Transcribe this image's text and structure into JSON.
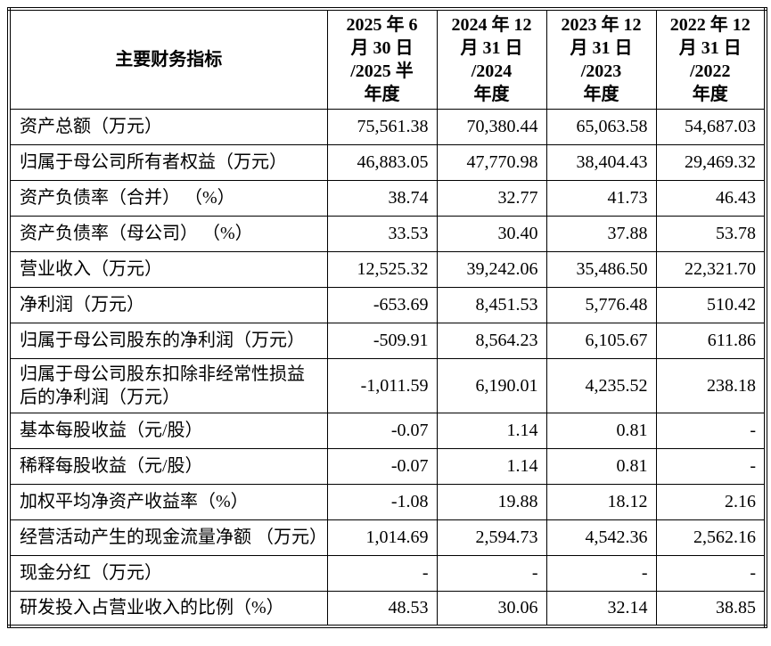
{
  "page": {
    "background_color": "#ffffff",
    "text_color": "#000000",
    "border_color": "#000000"
  },
  "table": {
    "header": {
      "label": "主要财务指标",
      "columns": [
        "2025 年 6\n月 30 日\n/2025 半\n年度",
        "2024 年 12\n月 31 日\n/2024\n年度",
        "2023 年 12\n月 31 日\n/2023\n年度",
        "2022 年 12\n月 31 日\n/2022\n年度"
      ]
    },
    "rows": [
      {
        "label": "资产总额（万元）",
        "values": [
          "75,561.38",
          "70,380.44",
          "65,063.58",
          "54,687.03"
        ]
      },
      {
        "label": "归属于母公司所有者权益（万元）",
        "values": [
          "46,883.05",
          "47,770.98",
          "38,404.43",
          "29,469.32"
        ]
      },
      {
        "label": "资产负债率（合并） （%）",
        "values": [
          "38.74",
          "32.77",
          "41.73",
          "46.43"
        ]
      },
      {
        "label": "资产负债率（母公司） （%）",
        "values": [
          "33.53",
          "30.40",
          "37.88",
          "53.78"
        ]
      },
      {
        "label": "营业收入（万元）",
        "values": [
          "12,525.32",
          "39,242.06",
          "35,486.50",
          "22,321.70"
        ]
      },
      {
        "label": "净利润（万元）",
        "values": [
          "-653.69",
          "8,451.53",
          "5,776.48",
          "510.42"
        ]
      },
      {
        "label": "归属于母公司股东的净利润（万元）",
        "values": [
          "-509.91",
          "8,564.23",
          "6,105.67",
          "611.86"
        ]
      },
      {
        "label": "归属于母公司股东扣除非经常性损益后的净利润（万元）",
        "values": [
          "-1,011.59",
          "6,190.01",
          "4,235.52",
          "238.18"
        ]
      },
      {
        "label": "基本每股收益（元/股）",
        "values": [
          "-0.07",
          "1.14",
          "0.81",
          "-"
        ]
      },
      {
        "label": "稀释每股收益（元/股）",
        "values": [
          "-0.07",
          "1.14",
          "0.81",
          "-"
        ]
      },
      {
        "label": "加权平均净资产收益率（%）",
        "values": [
          "-1.08",
          "19.88",
          "18.12",
          "2.16"
        ]
      },
      {
        "label": "经营活动产生的现金流量净额 （万元）",
        "values": [
          "1,014.69",
          "2,594.73",
          "4,542.36",
          "2,562.16"
        ]
      },
      {
        "label": "现金分红（万元）",
        "values": [
          "-",
          "-",
          "-",
          "-"
        ]
      },
      {
        "label": "研发投入占营业收入的比例（%）",
        "values": [
          "48.53",
          "30.06",
          "32.14",
          "38.85"
        ]
      }
    ]
  }
}
